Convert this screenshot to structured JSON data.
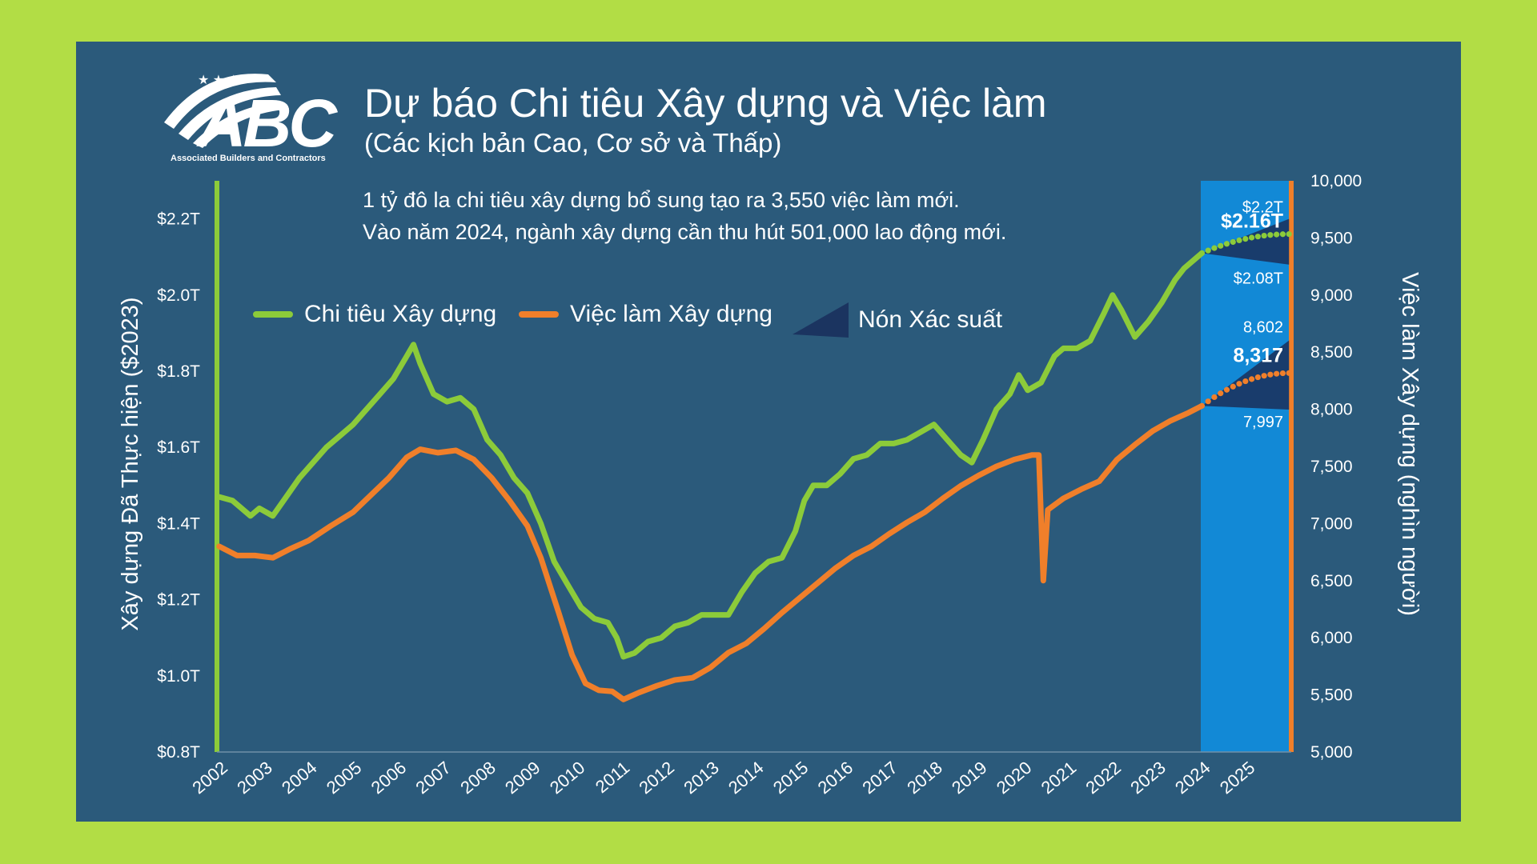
{
  "title": "Dự báo Chi tiêu Xây dựng và Việc làm",
  "subtitle": "(Các kịch bản Cao, Cơ sở và Thấp)",
  "notes": [
    "1 tỷ đô la chi tiêu xây dựng bổ sung tạo ra 3,550 việc làm mới.",
    "Vào năm 2024, ngành xây dựng cần thu hút 501,000 lao động mới."
  ],
  "logo": {
    "text": "ABC",
    "caption": "Associated Builders and Contractors"
  },
  "legend": {
    "spending": "Chi tiêu Xây dựng",
    "employment": "Việc làm Xây dựng",
    "cone": "Nón Xác suất"
  },
  "colors": {
    "background": "#b2dd45",
    "panel": "#2b5a7b",
    "spending": "#8ccb3a",
    "employment": "#f07f2a",
    "forecast_band": "#1289d6",
    "cone": "#1b3460"
  },
  "chart_data": {
    "type": "line",
    "x_categories": [
      "2002",
      "2003",
      "2004",
      "2005",
      "2006",
      "2007",
      "2008",
      "2009",
      "2010",
      "2011",
      "2012",
      "2013",
      "2014",
      "2015",
      "2016",
      "2017",
      "2018",
      "2019",
      "2020",
      "2021",
      "2022",
      "2023",
      "2024",
      "2025"
    ],
    "forecast_start": 2024,
    "ylabel_left": "Xây dựng Đã Thực hiện ($2023)",
    "ylabel_right": "Việc làm Xây dựng (nghìn người)",
    "left_axis": {
      "range": [
        0.8,
        2.3
      ],
      "ticks": [
        0.8,
        1.0,
        1.2,
        1.4,
        1.6,
        1.8,
        2.0,
        2.2
      ],
      "tick_labels": [
        "$0.8T",
        "$1.0T",
        "$1.2T",
        "$1.4T",
        "$1.6T",
        "$1.8T",
        "$2.0T",
        "$2.2T"
      ]
    },
    "right_axis": {
      "range": [
        5000,
        10000
      ],
      "ticks": [
        5000,
        5500,
        6000,
        6500,
        7000,
        7500,
        8000,
        8500,
        9000,
        9500,
        10000
      ],
      "tick_labels": [
        "5,000",
        "5,500",
        "6,000",
        "6,500",
        "7,000",
        "7,500",
        "8,000",
        "8,500",
        "9,000",
        "9,500",
        "10,000"
      ]
    },
    "series": [
      {
        "name": "Chi tiêu Xây dựng",
        "axis": "left",
        "unit": "trillion USD",
        "points": [
          [
            2002.0,
            1.47
          ],
          [
            2002.3,
            1.46
          ],
          [
            2002.7,
            1.42
          ],
          [
            2002.9,
            1.44
          ],
          [
            2003.2,
            1.42
          ],
          [
            2003.5,
            1.47
          ],
          [
            2003.8,
            1.52
          ],
          [
            2004.1,
            1.56
          ],
          [
            2004.4,
            1.6
          ],
          [
            2004.7,
            1.63
          ],
          [
            2005.0,
            1.66
          ],
          [
            2005.3,
            1.7
          ],
          [
            2005.6,
            1.74
          ],
          [
            2005.9,
            1.78
          ],
          [
            2006.2,
            1.84
          ],
          [
            2006.35,
            1.87
          ],
          [
            2006.5,
            1.82
          ],
          [
            2006.8,
            1.74
          ],
          [
            2007.1,
            1.72
          ],
          [
            2007.4,
            1.73
          ],
          [
            2007.7,
            1.7
          ],
          [
            2008.0,
            1.62
          ],
          [
            2008.3,
            1.58
          ],
          [
            2008.6,
            1.52
          ],
          [
            2008.9,
            1.48
          ],
          [
            2009.2,
            1.4
          ],
          [
            2009.5,
            1.3
          ],
          [
            2009.8,
            1.24
          ],
          [
            2010.1,
            1.18
          ],
          [
            2010.4,
            1.15
          ],
          [
            2010.7,
            1.14
          ],
          [
            2010.9,
            1.1
          ],
          [
            2011.05,
            1.05
          ],
          [
            2011.3,
            1.06
          ],
          [
            2011.6,
            1.09
          ],
          [
            2011.9,
            1.1
          ],
          [
            2012.2,
            1.13
          ],
          [
            2012.5,
            1.14
          ],
          [
            2012.8,
            1.16
          ],
          [
            2013.1,
            1.16
          ],
          [
            2013.4,
            1.16
          ],
          [
            2013.7,
            1.22
          ],
          [
            2014.0,
            1.27
          ],
          [
            2014.3,
            1.3
          ],
          [
            2014.6,
            1.31
          ],
          [
            2014.9,
            1.38
          ],
          [
            2015.1,
            1.46
          ],
          [
            2015.3,
            1.5
          ],
          [
            2015.6,
            1.5
          ],
          [
            2015.9,
            1.53
          ],
          [
            2016.2,
            1.57
          ],
          [
            2016.5,
            1.58
          ],
          [
            2016.8,
            1.61
          ],
          [
            2017.1,
            1.61
          ],
          [
            2017.4,
            1.62
          ],
          [
            2017.7,
            1.64
          ],
          [
            2018.0,
            1.66
          ],
          [
            2018.3,
            1.62
          ],
          [
            2018.6,
            1.58
          ],
          [
            2018.85,
            1.56
          ],
          [
            2019.1,
            1.62
          ],
          [
            2019.4,
            1.7
          ],
          [
            2019.7,
            1.74
          ],
          [
            2019.9,
            1.79
          ],
          [
            2020.1,
            1.75
          ],
          [
            2020.4,
            1.77
          ],
          [
            2020.7,
            1.84
          ],
          [
            2020.9,
            1.86
          ],
          [
            2021.2,
            1.86
          ],
          [
            2021.5,
            1.88
          ],
          [
            2021.8,
            1.95
          ],
          [
            2022.0,
            2.0
          ],
          [
            2022.2,
            1.96
          ],
          [
            2022.5,
            1.89
          ],
          [
            2022.8,
            1.93
          ],
          [
            2023.1,
            1.98
          ],
          [
            2023.4,
            2.04
          ],
          [
            2023.6,
            2.07
          ],
          [
            2023.9,
            2.1
          ],
          [
            2024.0,
            2.11
          ]
        ]
      },
      {
        "name": "Việc làm Xây dựng",
        "axis": "right",
        "unit": "thousand workers",
        "points": [
          [
            2002.0,
            6800
          ],
          [
            2002.4,
            6720
          ],
          [
            2002.8,
            6720
          ],
          [
            2003.2,
            6700
          ],
          [
            2003.6,
            6780
          ],
          [
            2004.0,
            6850
          ],
          [
            2004.5,
            6980
          ],
          [
            2005.0,
            7100
          ],
          [
            2005.4,
            7250
          ],
          [
            2005.8,
            7400
          ],
          [
            2006.2,
            7580
          ],
          [
            2006.5,
            7650
          ],
          [
            2006.9,
            7620
          ],
          [
            2007.3,
            7640
          ],
          [
            2007.7,
            7560
          ],
          [
            2008.1,
            7400
          ],
          [
            2008.5,
            7200
          ],
          [
            2008.9,
            6980
          ],
          [
            2009.2,
            6700
          ],
          [
            2009.6,
            6220
          ],
          [
            2009.9,
            5850
          ],
          [
            2010.2,
            5600
          ],
          [
            2010.5,
            5540
          ],
          [
            2010.8,
            5530
          ],
          [
            2011.05,
            5460
          ],
          [
            2011.4,
            5520
          ],
          [
            2011.8,
            5580
          ],
          [
            2012.2,
            5630
          ],
          [
            2012.6,
            5650
          ],
          [
            2013.0,
            5740
          ],
          [
            2013.4,
            5870
          ],
          [
            2013.8,
            5950
          ],
          [
            2014.2,
            6080
          ],
          [
            2014.6,
            6220
          ],
          [
            2015.0,
            6350
          ],
          [
            2015.4,
            6480
          ],
          [
            2015.8,
            6610
          ],
          [
            2016.2,
            6720
          ],
          [
            2016.6,
            6800
          ],
          [
            2017.0,
            6910
          ],
          [
            2017.4,
            7010
          ],
          [
            2017.8,
            7100
          ],
          [
            2018.2,
            7220
          ],
          [
            2018.6,
            7330
          ],
          [
            2019.0,
            7420
          ],
          [
            2019.4,
            7500
          ],
          [
            2019.8,
            7560
          ],
          [
            2020.2,
            7600
          ],
          [
            2020.35,
            7600
          ],
          [
            2020.45,
            6500
          ],
          [
            2020.55,
            7120
          ],
          [
            2020.9,
            7220
          ],
          [
            2021.3,
            7300
          ],
          [
            2021.7,
            7370
          ],
          [
            2022.1,
            7560
          ],
          [
            2022.5,
            7690
          ],
          [
            2022.9,
            7810
          ],
          [
            2023.3,
            7900
          ],
          [
            2023.7,
            7970
          ],
          [
            2024.0,
            8030
          ]
        ]
      }
    ],
    "forecast": {
      "x_range": [
        2024,
        2025.95
      ],
      "spending": {
        "high": 2.2,
        "base": 2.16,
        "low": 2.08,
        "labels": [
          "$2.2T",
          "$2.16T",
          "$2.08T"
        ]
      },
      "employment": {
        "high": 8602,
        "base": 8317,
        "low": 7997,
        "labels": [
          "8,602",
          "8,317",
          "7,997"
        ]
      }
    }
  }
}
